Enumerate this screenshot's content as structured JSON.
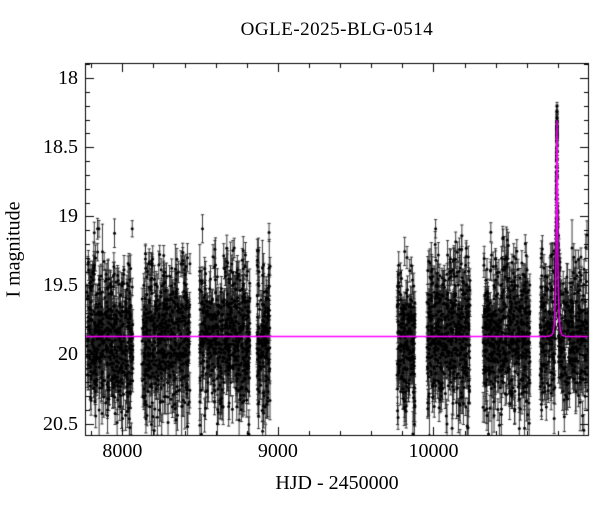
{
  "title": "OGLE-2025-BLG-0514",
  "chart_data": {
    "type": "scatter",
    "title": "OGLE-2025-BLG-0514",
    "xlabel": "HJD - 2450000",
    "ylabel": "I magnitude",
    "x_range": [
      7760,
      11000
    ],
    "y_range_mag": [
      20.59,
      17.89
    ],
    "y_axis_inverted": true,
    "grid": false,
    "x_major_ticks": [
      8000,
      9000,
      10000
    ],
    "x_major_tick_labels": [
      "8000",
      "9000",
      "10000"
    ],
    "x_minor_step": 200,
    "y_major_ticks": [
      18,
      18.5,
      19,
      19.5,
      20,
      20.5
    ],
    "y_major_tick_labels": [
      "18",
      "18.5",
      "19",
      "19.5",
      "20",
      "20.5"
    ],
    "y_minor_step": 0.1,
    "background_color": "#ffffff",
    "point_color": "#000000",
    "error_bar_color": "#222222",
    "model_color": "#ff00ff",
    "frame_color": "#000000",
    "baseline_mag": 19.87,
    "scatter_sigma_mag": 0.26,
    "model_curve": {
      "type": "paczynski",
      "t0": 10794,
      "tE": 10,
      "u0": 0.24,
      "baseline_mag": 19.87,
      "peak_mag": 18.3
    },
    "observing_seasons": [
      {
        "t_start": 7772,
        "t_end": 8068,
        "n_points": 550
      },
      {
        "t_start": 8126,
        "t_end": 8435,
        "n_points": 560
      },
      {
        "t_start": 8495,
        "t_end": 8820,
        "n_points": 580
      },
      {
        "t_start": 8866,
        "t_end": 8950,
        "n_points": 170
      },
      {
        "t_start": 9766,
        "t_end": 9882,
        "n_points": 220
      },
      {
        "t_start": 9959,
        "t_end": 10235,
        "n_points": 520
      },
      {
        "t_start": 10319,
        "t_end": 10621,
        "n_points": 560
      },
      {
        "t_start": 10685,
        "t_end": 10997,
        "n_points": 620
      }
    ]
  }
}
